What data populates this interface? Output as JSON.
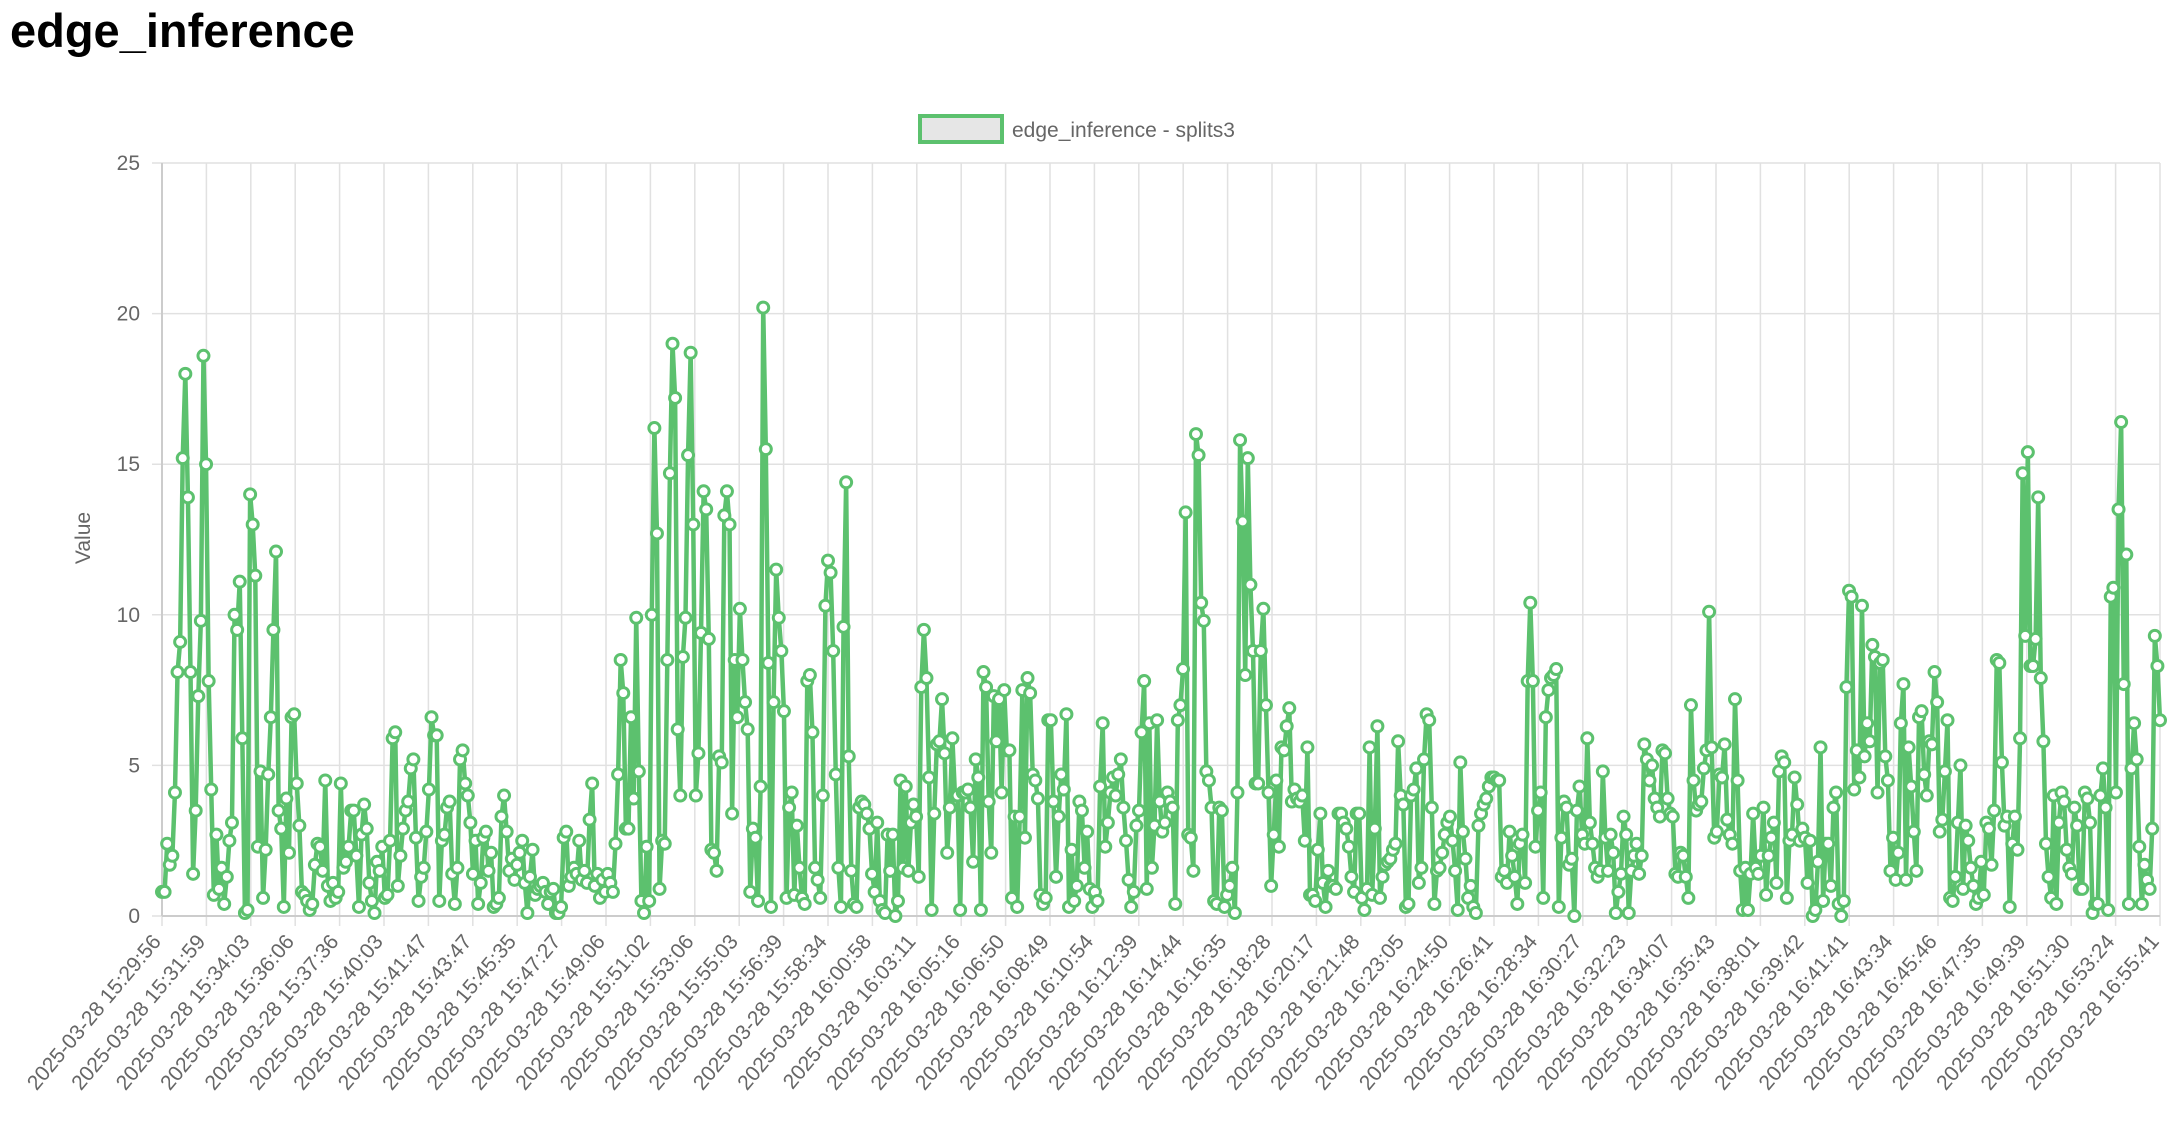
{
  "page": {
    "title": "edge_inference"
  },
  "colors": {
    "series": "#5cc16e",
    "series_fill": "#e6e6e6",
    "grid": "#e1e1e1",
    "axis_text": "#666666"
  },
  "chart_data": {
    "type": "line",
    "title": "",
    "xlabel": "",
    "ylabel": "Value",
    "ylim": [
      0,
      25
    ],
    "yticks": [
      0,
      5,
      10,
      15,
      20,
      25
    ],
    "grid": true,
    "legend_position": "top-center",
    "x_tick_labels": [
      "2025-03-28 15:29:56",
      "2025-03-28 15:31:59",
      "2025-03-28 15:34:03",
      "2025-03-28 15:36:06",
      "2025-03-28 15:37:36",
      "2025-03-28 15:40:03",
      "2025-03-28 15:41:47",
      "2025-03-28 15:43:47",
      "2025-03-28 15:45:35",
      "2025-03-28 15:47:27",
      "2025-03-28 15:49:06",
      "2025-03-28 15:51:02",
      "2025-03-28 15:53:06",
      "2025-03-28 15:55:03",
      "2025-03-28 15:56:39",
      "2025-03-28 15:58:34",
      "2025-03-28 16:00:58",
      "2025-03-28 16:03:11",
      "2025-03-28 16:05:16",
      "2025-03-28 16:06:50",
      "2025-03-28 16:08:49",
      "2025-03-28 16:10:54",
      "2025-03-28 16:12:39",
      "2025-03-28 16:14:44",
      "2025-03-28 16:16:35",
      "2025-03-28 16:18:28",
      "2025-03-28 16:20:17",
      "2025-03-28 16:21:48",
      "2025-03-28 16:23:05",
      "2025-03-28 16:24:50",
      "2025-03-28 16:26:41",
      "2025-03-28 16:28:34",
      "2025-03-28 16:30:27",
      "2025-03-28 16:32:23",
      "2025-03-28 16:34:07",
      "2025-03-28 16:35:43",
      "2025-03-28 16:38:01",
      "2025-03-28 16:39:42",
      "2025-03-28 16:41:41",
      "2025-03-28 16:43:34",
      "2025-03-28 16:45:46",
      "2025-03-28 16:47:35",
      "2025-03-28 16:49:39",
      "2025-03-28 16:51:30",
      "2025-03-28 16:53:24",
      "2025-03-28 16:55:41"
    ],
    "series": [
      {
        "name": "edge_inference - splits3",
        "values": [
          0.8,
          0.8,
          2.4,
          1.7,
          2.0,
          4.1,
          8.1,
          9.1,
          15.2,
          18.0,
          13.9,
          8.1,
          1.4,
          3.5,
          7.3,
          9.8,
          18.6,
          15.0,
          7.8,
          4.2,
          0.7,
          2.7,
          0.9,
          1.6,
          0.4,
          1.3,
          2.5,
          3.1,
          10.0,
          9.5,
          11.1,
          5.9,
          0.1,
          0.2,
          14.0,
          13.0,
          11.3,
          2.3,
          4.8,
          0.6,
          2.2,
          4.7,
          6.6,
          9.5,
          12.1,
          3.5,
          2.9,
          0.3,
          3.9,
          2.1,
          6.6,
          6.7,
          4.4,
          3.0,
          0.8,
          0.7,
          0.5,
          0.2,
          0.4,
          1.7,
          2.4,
          2.3,
          1.5,
          4.5,
          1.0,
          0.5,
          1.1,
          0.6,
          0.8,
          4.4,
          1.6,
          1.8,
          2.3,
          3.5,
          3.5,
          2.0,
          0.3,
          2.7,
          3.7,
          2.9,
          1.1,
          0.5,
          0.1,
          1.8,
          1.5,
          2.3,
          0.6,
          0.7,
          2.5,
          5.9,
          6.1,
          1.0,
          2.0,
          2.9,
          3.5,
          3.8,
          4.9,
          5.2,
          2.6,
          0.5,
          1.3,
          1.6,
          2.8,
          4.2,
          6.6,
          6.0,
          6.0,
          0.5,
          2.5,
          2.7,
          3.6,
          3.8,
          1.4,
          0.4,
          1.6,
          5.2,
          5.5,
          4.4,
          4.0,
          3.1,
          1.4,
          2.5,
          0.4,
          1.1,
          2.6,
          2.8,
          1.5,
          2.1,
          0.3,
          0.4,
          0.6,
          3.3,
          4.0,
          2.8,
          1.5,
          1.9,
          1.2,
          1.7,
          2.1,
          2.5,
          1.1,
          0.1,
          1.3,
          2.2,
          0.7,
          0.9,
          1.0,
          1.1,
          0.8,
          0.4,
          0.8,
          0.9,
          0.1,
          0.1,
          0.3,
          2.6,
          2.8,
          1.0,
          1.3,
          1.6,
          1.4,
          2.5,
          1.2,
          1.5,
          1.1,
          3.2,
          4.4,
          1.0,
          1.4,
          0.6,
          1.2,
          0.8,
          1.4,
          1.1,
          0.8,
          2.4,
          4.7,
          8.5,
          7.4,
          2.9,
          2.9,
          6.6,
          3.9,
          9.9,
          4.8,
          0.5,
          0.1,
          2.3,
          0.5,
          10.0,
          16.2,
          12.7,
          0.9,
          2.5,
          2.4,
          8.5,
          14.7,
          19.0,
          17.2,
          6.2,
          4.0,
          8.6,
          9.9,
          15.3,
          18.7,
          13.0,
          4.0,
          5.4,
          9.4,
          14.1,
          13.5,
          9.2,
          2.2,
          2.1,
          1.5,
          5.3,
          5.1,
          13.3,
          14.1,
          13.0,
          3.4,
          8.5,
          6.6,
          10.2,
          8.5,
          7.1,
          6.2,
          0.8,
          2.9,
          2.6,
          0.5,
          4.3,
          20.2,
          15.5,
          8.4,
          0.3,
          7.1,
          11.5,
          9.9,
          8.8,
          6.8,
          0.6,
          3.6,
          4.1,
          0.7,
          3.0,
          1.6,
          0.6,
          0.4,
          7.8,
          8.0,
          6.1,
          1.6,
          1.2,
          0.6,
          4.0,
          10.3,
          11.8,
          11.4,
          8.8,
          4.7,
          1.6,
          0.3,
          9.6,
          14.4,
          5.3,
          1.5,
          0.4,
          0.3,
          3.6,
          3.8,
          3.7,
          3.4,
          2.9,
          1.4,
          0.8,
          3.1,
          0.5,
          0.2,
          0.1,
          2.7,
          1.5,
          2.7,
          0.0,
          0.5,
          4.5,
          1.6,
          4.3,
          1.5,
          3.1,
          3.7,
          3.3,
          1.3,
          7.6,
          9.5,
          7.9,
          4.6,
          0.2,
          3.4,
          5.7,
          5.8,
          7.2,
          5.4,
          2.1,
          3.6,
          5.9,
          4.0,
          4.0,
          0.2,
          4.1,
          4.1,
          4.2,
          3.6,
          1.8,
          5.2,
          4.6,
          0.2,
          8.1,
          7.6,
          3.8,
          2.1,
          7.3,
          5.8,
          7.2,
          4.1,
          7.5,
          5.5,
          5.5,
          0.6,
          3.3,
          0.3,
          3.3,
          7.5,
          2.6,
          7.9,
          7.4,
          4.7,
          4.5,
          3.9,
          0.7,
          0.4,
          0.6,
          6.5,
          6.5,
          3.8,
          1.3,
          3.3,
          4.7,
          4.2,
          6.7,
          0.3,
          2.2,
          0.5,
          1.0,
          3.8,
          3.5,
          1.6,
          2.8,
          0.9,
          0.3,
          0.8,
          0.5,
          4.3,
          6.4,
          2.3,
          3.1,
          4.1,
          4.6,
          4.0,
          4.7,
          5.2,
          3.6,
          2.5,
          1.2,
          0.3,
          0.8,
          3.0,
          3.5,
          6.1,
          7.8,
          0.9,
          6.4,
          1.6,
          3.0,
          6.5,
          3.8,
          2.8,
          3.1,
          4.1,
          3.8,
          3.6,
          0.4,
          6.5,
          7.0,
          8.2,
          13.4,
          2.7,
          2.6,
          1.5,
          16.0,
          15.3,
          10.4,
          9.8,
          4.8,
          4.5,
          3.6,
          0.5,
          0.4,
          3.6,
          3.5,
          0.3,
          0.7,
          1.0,
          1.6,
          0.1,
          4.1,
          15.8,
          13.1,
          8.0,
          15.2,
          11.0,
          8.8,
          4.4,
          4.4,
          8.8,
          10.2,
          7.0,
          4.1,
          1.0,
          2.7,
          4.5,
          2.3,
          5.6,
          5.5,
          6.3,
          6.9,
          3.8,
          4.2,
          3.9,
          3.8,
          4.0,
          2.5,
          5.6,
          0.7,
          0.7,
          0.5,
          2.2,
          3.4,
          1.1,
          0.3,
          1.5,
          1.0,
          1.0,
          0.9,
          3.4,
          3.4,
          3.1,
          2.9,
          2.3,
          1.3,
          0.8,
          3.4,
          3.4,
          0.6,
          0.2,
          0.9,
          5.6,
          0.7,
          2.9,
          6.3,
          0.6,
          1.3,
          1.7,
          1.8,
          1.9,
          2.2,
          2.4,
          5.8,
          4.0,
          3.7,
          0.3,
          0.4,
          4.0,
          4.2,
          4.9,
          1.1,
          1.6,
          5.2,
          6.7,
          6.5,
          3.6,
          0.4,
          1.5,
          1.6,
          2.1,
          2.7,
          3.1,
          3.3,
          2.5,
          1.5,
          0.2,
          5.1,
          2.8,
          1.9,
          0.6,
          1.0,
          0.3,
          0.1,
          3.0,
          3.4,
          3.7,
          3.9,
          4.3,
          4.6,
          4.6,
          4.5,
          4.5,
          1.3,
          1.5,
          1.1,
          2.8,
          2.0,
          1.3,
          0.4,
          2.4,
          2.7,
          1.1,
          7.8,
          10.4,
          7.8,
          2.3,
          3.5,
          4.1,
          0.6,
          6.6,
          7.5,
          7.9,
          8.0,
          8.2,
          0.3,
          2.6,
          3.8,
          3.6,
          1.7,
          1.9,
          0.0,
          3.5,
          4.3,
          2.7,
          2.4,
          5.9,
          3.1,
          2.4,
          1.6,
          1.3,
          1.5,
          4.8,
          2.6,
          1.5,
          2.7,
          2.1,
          0.1,
          0.8,
          1.4,
          3.3,
          2.7,
          0.1,
          1.5,
          2.0,
          2.4,
          1.4,
          2.0,
          5.7,
          5.2,
          4.5,
          5.0,
          3.9,
          3.6,
          3.3,
          5.5,
          5.4,
          3.9,
          3.4,
          3.3,
          1.4,
          1.3,
          2.1,
          2.0,
          1.3,
          0.6,
          7.0,
          4.5,
          3.5,
          3.7,
          3.8,
          4.9,
          5.5,
          10.1,
          5.6,
          2.6,
          2.8,
          4.7,
          4.6,
          5.7,
          3.2,
          2.7,
          2.4,
          7.2,
          4.5,
          1.5,
          0.2,
          1.6,
          0.2,
          1.4,
          3.4,
          1.6,
          1.4,
          2.0,
          3.6,
          0.7,
          2.0,
          2.6,
          3.1,
          1.1,
          4.8,
          5.3,
          5.1,
          0.6,
          2.5,
          2.7,
          4.6,
          3.7,
          2.5,
          2.9,
          2.6,
          1.1,
          2.5,
          0.0,
          0.2,
          1.8,
          5.6,
          0.5,
          2.4,
          2.4,
          1.0,
          3.6,
          4.1,
          0.4,
          0.0,
          0.5,
          7.6,
          10.8,
          10.6,
          4.2,
          5.5,
          4.6,
          10.3,
          5.3,
          6.4,
          5.8,
          9.0,
          8.6,
          4.1,
          8.4,
          8.5,
          5.3,
          4.5,
          1.5,
          2.6,
          1.2,
          2.1,
          6.4,
          7.7,
          1.2,
          5.6,
          4.3,
          2.8,
          1.5,
          6.6,
          6.8,
          4.7,
          4.0,
          5.8,
          5.7,
          8.1,
          7.1,
          2.8,
          3.2,
          4.8,
          6.5,
          0.6,
          0.5,
          1.3,
          3.1,
          5.0,
          0.9,
          3.0,
          2.5,
          1.6,
          1.0,
          0.4,
          0.6,
          1.8,
          0.7,
          3.1,
          2.9,
          1.7,
          3.5,
          8.5,
          8.4,
          5.1,
          3.0,
          3.3,
          0.3,
          2.4,
          3.3,
          2.2,
          5.9,
          14.7,
          9.3,
          15.4,
          8.3,
          8.3,
          9.2,
          13.9,
          7.9,
          5.8,
          2.4,
          1.3,
          0.6,
          4.0,
          0.4,
          3.1,
          4.1,
          3.8,
          2.2,
          1.6,
          1.4,
          3.6,
          3.0,
          0.9,
          0.9,
          4.1,
          3.9,
          3.1,
          0.1,
          0.4,
          0.4,
          4.0,
          4.9,
          3.6,
          0.2,
          10.6,
          10.9,
          4.1,
          13.5,
          16.4,
          7.7,
          12.0,
          0.4,
          4.9,
          6.4,
          5.2,
          2.3,
          0.4,
          1.7,
          1.2,
          0.9,
          2.9,
          9.3,
          8.3,
          6.5
        ]
      }
    ]
  }
}
